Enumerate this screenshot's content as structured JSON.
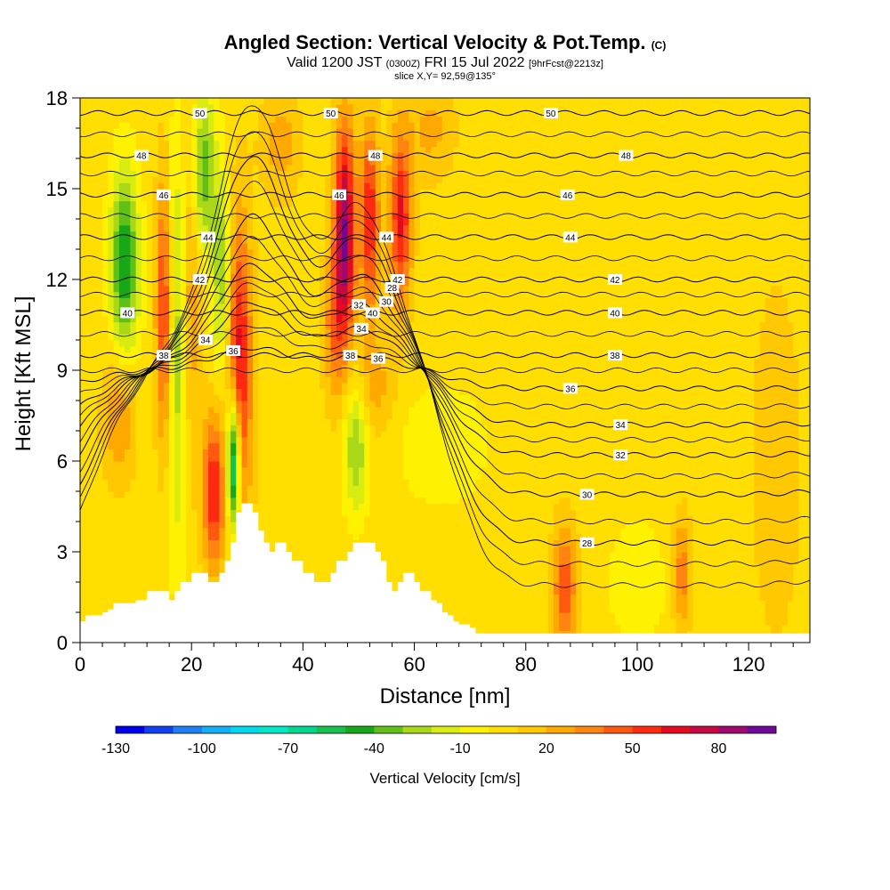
{
  "title": {
    "main": "Angled Section: Vertical Velocity & Pot.Temp.",
    "main_suffix": "(C)",
    "valid_prefix": "Valid 1200 JST",
    "valid_utc": "(0300Z)",
    "valid_date": "FRI 15 Jul 2022",
    "forecast": "[9hrFcst@2213z]",
    "slice": "slice X,Y= 92,59@135°"
  },
  "chart_data": {
    "type": "heatmap",
    "xlabel": "Distance [nm]",
    "ylabel": "Height [Kft MSL]",
    "xlim": [
      0,
      131
    ],
    "ylim": [
      0,
      18
    ],
    "x_ticks": [
      0,
      20,
      40,
      60,
      80,
      100,
      120
    ],
    "y_ticks": [
      0,
      3,
      6,
      9,
      12,
      15,
      18
    ],
    "colorbar": {
      "title": "Vertical Velocity [cm/s]",
      "labels": [
        "-130",
        "-100",
        "-70",
        "-40",
        "-10",
        "20",
        "50",
        "80"
      ],
      "levels": [
        -130,
        -120,
        -110,
        -100,
        -90,
        -80,
        -70,
        -60,
        -50,
        -40,
        -30,
        -20,
        -10,
        0,
        10,
        20,
        30,
        40,
        50,
        60,
        70,
        80,
        90
      ],
      "colors": [
        "#0000ee",
        "#1040f0",
        "#1f7ff5",
        "#12b0f7",
        "#00d8f0",
        "#00e8c8",
        "#00d890",
        "#18c050",
        "#16a818",
        "#60c018",
        "#a8d818",
        "#d8ec10",
        "#fff200",
        "#ffde00",
        "#ffc800",
        "#ffa800",
        "#ff8410",
        "#ff5810",
        "#ff2a10",
        "#e60a20",
        "#c40a40",
        "#a00a70",
        "#700898"
      ]
    },
    "background_value": 5,
    "velocity_features": [
      {
        "x": 8,
        "y": 12.5,
        "sx": 1.8,
        "sy": 2.2,
        "v": -55
      },
      {
        "x": 7,
        "y": 7.5,
        "sx": 2,
        "sy": 1.5,
        "v": 28
      },
      {
        "x": 15,
        "y": 11,
        "sx": 1,
        "sy": 3,
        "v": 48
      },
      {
        "x": 17.5,
        "y": 10,
        "sx": 1.1,
        "sy": 5,
        "v": -32
      },
      {
        "x": 20,
        "y": 12.5,
        "sx": 1.4,
        "sy": 4,
        "v": 25
      },
      {
        "x": 22,
        "y": 15.5,
        "sx": 1.6,
        "sy": 2,
        "v": -45
      },
      {
        "x": 24,
        "y": 5,
        "sx": 1.4,
        "sy": 1.8,
        "v": 55
      },
      {
        "x": 28.5,
        "y": 9,
        "sx": 1.6,
        "sy": 3.5,
        "v": 62
      },
      {
        "x": 27.5,
        "y": 6,
        "sx": 0.9,
        "sy": 1.6,
        "v": -95
      },
      {
        "x": 25.5,
        "y": 12,
        "sx": 1.2,
        "sy": 2.5,
        "v": -35
      },
      {
        "x": 47.5,
        "y": 13.5,
        "sx": 1.3,
        "sy": 2.5,
        "v": 85
      },
      {
        "x": 52,
        "y": 14,
        "sx": 1.2,
        "sy": 2.2,
        "v": 55
      },
      {
        "x": 57.5,
        "y": 14,
        "sx": 1.4,
        "sy": 2,
        "v": 58
      },
      {
        "x": 45.5,
        "y": 10.5,
        "sx": 1.3,
        "sy": 1.8,
        "v": 30
      },
      {
        "x": 49.5,
        "y": 6.5,
        "sx": 1.5,
        "sy": 1.6,
        "v": -35
      },
      {
        "x": 53,
        "y": 8.5,
        "sx": 2.5,
        "sy": 1.2,
        "v": 20
      },
      {
        "x": 87,
        "y": 1.8,
        "sx": 1.5,
        "sy": 1.5,
        "v": 42
      },
      {
        "x": 108,
        "y": 2.3,
        "sx": 1.2,
        "sy": 1.3,
        "v": 32
      },
      {
        "x": 100,
        "y": 2,
        "sx": 4,
        "sy": 1.5,
        "v": -12
      },
      {
        "x": 65,
        "y": 6.5,
        "sx": 6,
        "sy": 1.5,
        "v": -12
      },
      {
        "x": 63,
        "y": 17,
        "sx": 3,
        "sy": 1.2,
        "v": 18
      },
      {
        "x": 125,
        "y": 6,
        "sx": 3,
        "sy": 4,
        "v": 14
      },
      {
        "x": 36,
        "y": 16.5,
        "sx": 2.5,
        "sy": 1.3,
        "v": 20
      }
    ],
    "terrain": [
      [
        0,
        0.7
      ],
      [
        1,
        0.9
      ],
      [
        2,
        0.9
      ],
      [
        3,
        0.9
      ],
      [
        4,
        1.0
      ],
      [
        5,
        1.1
      ],
      [
        6,
        1.3
      ],
      [
        7,
        1.3
      ],
      [
        8,
        1.3
      ],
      [
        9,
        1.3
      ],
      [
        10,
        1.4
      ],
      [
        11,
        1.4
      ],
      [
        12,
        1.7
      ],
      [
        13,
        1.7
      ],
      [
        14,
        1.7
      ],
      [
        15,
        1.7
      ],
      [
        16,
        1.4
      ],
      [
        17,
        1.7
      ],
      [
        18,
        2.0
      ],
      [
        19,
        2.0
      ],
      [
        20,
        2.3
      ],
      [
        21,
        2.3
      ],
      [
        22,
        2.3
      ],
      [
        23,
        2.0
      ],
      [
        24,
        2.0
      ],
      [
        25,
        2.3
      ],
      [
        26,
        2.7
      ],
      [
        27,
        3.3
      ],
      [
        28,
        4.3
      ],
      [
        29,
        4.6
      ],
      [
        30,
        4.6
      ],
      [
        31,
        4.3
      ],
      [
        32,
        3.7
      ],
      [
        33,
        3.3
      ],
      [
        34,
        3.0
      ],
      [
        35,
        3.3
      ],
      [
        36,
        3.3
      ],
      [
        37,
        3.0
      ],
      [
        38,
        2.7
      ],
      [
        39,
        2.7
      ],
      [
        40,
        2.3
      ],
      [
        41,
        2.3
      ],
      [
        42,
        2.0
      ],
      [
        43,
        2.0
      ],
      [
        44,
        2.0
      ],
      [
        45,
        2.3
      ],
      [
        46,
        2.7
      ],
      [
        47,
        2.7
      ],
      [
        48,
        3.0
      ],
      [
        49,
        3.3
      ],
      [
        50,
        3.3
      ],
      [
        51,
        3.3
      ],
      [
        52,
        3.3
      ],
      [
        53,
        3.0
      ],
      [
        54,
        2.7
      ],
      [
        55,
        2.0
      ],
      [
        56,
        1.7
      ],
      [
        57,
        2.0
      ],
      [
        58,
        2.3
      ],
      [
        59,
        2.3
      ],
      [
        60,
        2.0
      ],
      [
        61,
        1.7
      ],
      [
        62,
        1.7
      ],
      [
        63,
        1.4
      ],
      [
        64,
        1.3
      ],
      [
        65,
        1.0
      ],
      [
        66,
        0.9
      ],
      [
        67,
        0.7
      ],
      [
        68,
        0.6
      ],
      [
        69,
        0.6
      ],
      [
        70,
        0.5
      ],
      [
        71,
        0.3
      ],
      [
        131,
        0.3
      ]
    ],
    "theta_contours": [
      {
        "level": 28,
        "base_height": 3.3,
        "labels": [
          {
            "x": 56,
            "text": "28"
          },
          {
            "x": 91,
            "text": "28"
          }
        ]
      },
      {
        "level": 30,
        "base_height": 4.9,
        "labels": [
          {
            "x": 55,
            "text": "30"
          },
          {
            "x": 91,
            "text": "30"
          }
        ]
      },
      {
        "level": 32,
        "base_height": 6.2,
        "labels": [
          {
            "x": 50,
            "text": "32"
          },
          {
            "x": 97,
            "text": "32"
          }
        ]
      },
      {
        "level": 34,
        "base_height": 7.2,
        "labels": [
          {
            "x": 22.5,
            "text": "34"
          },
          {
            "x": 50.5,
            "text": "34"
          },
          {
            "x": 97,
            "text": "34"
          }
        ]
      },
      {
        "level": 36,
        "base_height": 8.4,
        "labels": [
          {
            "x": 27.5,
            "text": "36"
          },
          {
            "x": 53.5,
            "text": "36"
          },
          {
            "x": 88,
            "text": "36"
          }
        ]
      },
      {
        "level": 38,
        "base_height": 9.5,
        "labels": [
          {
            "x": 15,
            "text": "38"
          },
          {
            "x": 48.5,
            "text": "38"
          },
          {
            "x": 96,
            "text": "38"
          }
        ]
      },
      {
        "level": 40,
        "base_height": 10.9,
        "labels": [
          {
            "x": 8.5,
            "text": "40"
          },
          {
            "x": 52.5,
            "text": "40"
          },
          {
            "x": 96,
            "text": "40"
          }
        ]
      },
      {
        "level": 42,
        "base_height": 12.0,
        "labels": [
          {
            "x": 21.5,
            "text": "42"
          },
          {
            "x": 57,
            "text": "42"
          },
          {
            "x": 96,
            "text": "42"
          }
        ]
      },
      {
        "level": 44,
        "base_height": 13.4,
        "labels": [
          {
            "x": 23,
            "text": "44"
          },
          {
            "x": 55,
            "text": "44"
          },
          {
            "x": 88,
            "text": "44"
          }
        ]
      },
      {
        "level": 46,
        "base_height": 14.8,
        "labels": [
          {
            "x": 15,
            "text": "46"
          },
          {
            "x": 46.5,
            "text": "46"
          },
          {
            "x": 87.5,
            "text": "46"
          }
        ]
      },
      {
        "level": 48,
        "base_height": 16.1,
        "labels": [
          {
            "x": 11,
            "text": "48"
          },
          {
            "x": 53,
            "text": "48"
          },
          {
            "x": 98,
            "text": "48"
          }
        ]
      },
      {
        "level": 50,
        "base_height": 17.5,
        "labels": [
          {
            "x": 21.5,
            "text": "50"
          },
          {
            "x": 45,
            "text": "50"
          },
          {
            "x": 84.5,
            "text": "50"
          }
        ]
      }
    ],
    "minor_theta_contours": [
      {
        "base_height": 1.9
      },
      {
        "base_height": 2.6
      },
      {
        "base_height": 4.0
      },
      {
        "base_height": 5.5
      },
      {
        "base_height": 6.7
      },
      {
        "base_height": 7.8
      },
      {
        "base_height": 9.0
      },
      {
        "base_height": 10.2
      },
      {
        "base_height": 11.5
      },
      {
        "base_height": 12.7
      },
      {
        "base_height": 14.1
      },
      {
        "base_height": 15.5
      },
      {
        "base_height": 16.8
      }
    ]
  }
}
